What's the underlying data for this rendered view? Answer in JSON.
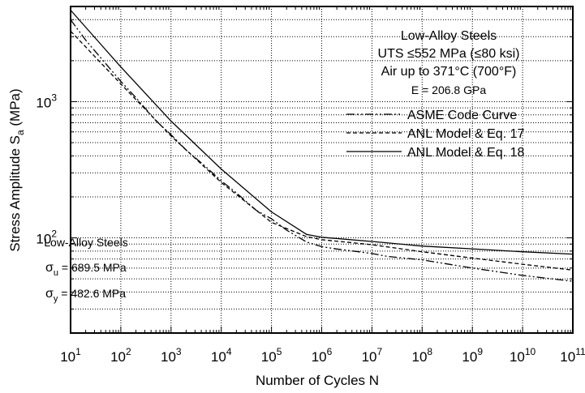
{
  "chart_data": {
    "type": "line",
    "xlabel": "Number of Cycles N",
    "ylabel_main": "Stress Amplitude S",
    "ylabel_sub": "a",
    "ylabel_unit": " (MPa)",
    "x_scale": "log",
    "y_scale": "log",
    "xlim": [
      10,
      100000000000
    ],
    "ylim": [
      20,
      5000
    ],
    "grid": true,
    "x_ticks": [
      {
        "value": 10,
        "base": "10",
        "exp": "1"
      },
      {
        "value": 100,
        "base": "10",
        "exp": "2"
      },
      {
        "value": 1000,
        "base": "10",
        "exp": "3"
      },
      {
        "value": 10000,
        "base": "10",
        "exp": "4"
      },
      {
        "value": 100000,
        "base": "10",
        "exp": "5"
      },
      {
        "value": 1000000,
        "base": "10",
        "exp": "6"
      },
      {
        "value": 10000000,
        "base": "10",
        "exp": "7"
      },
      {
        "value": 100000000,
        "base": "10",
        "exp": "8"
      },
      {
        "value": 1000000000,
        "base": "10",
        "exp": "9"
      },
      {
        "value": 10000000000,
        "base": "10",
        "exp": "10"
      },
      {
        "value": 100000000000,
        "base": "10",
        "exp": "11"
      }
    ],
    "y_ticks": [
      {
        "value": 100,
        "base": "10",
        "exp": "2"
      },
      {
        "value": 1000,
        "base": "10",
        "exp": "3"
      }
    ],
    "title_lines": [
      "Low-Alloy Steels",
      "UTS ≤552 MPa (≤80 ksi)",
      "Air up to 371°C (700°F)"
    ],
    "modulus_text": "E = 206.8 GPa",
    "legend_position": "upper-right",
    "series": [
      {
        "name": "ASME Code Curve",
        "dash": "dashdot",
        "x": [
          10,
          20,
          50,
          100,
          200,
          500,
          1000,
          2000,
          5000,
          10000,
          20000,
          50000,
          100000,
          200000,
          500000,
          1000000,
          2000000,
          10000000,
          20000000,
          100000000,
          1000000000,
          10000000000,
          100000000000
        ],
        "y": [
          4000,
          2830,
          1900,
          1410,
          1070,
          724,
          572,
          441,
          331,
          262,
          214,
          159,
          138,
          114,
          93.1,
          86.2,
          82.8,
          76.8,
          73.1,
          68.9,
          60,
          53,
          48
        ]
      },
      {
        "name": "ANL Model & Eq. 17",
        "dash": "dashed",
        "x": [
          10,
          100,
          1000,
          10000,
          100000,
          500000,
          1000000,
          10000000,
          100000000,
          1000000000,
          10000000000,
          100000000000
        ],
        "y": [
          3300,
          1350,
          560,
          255,
          130,
          102,
          97,
          89,
          79,
          71,
          64,
          58
        ]
      },
      {
        "name": "ANL Model & Eq. 18",
        "dash": "solid",
        "x": [
          10,
          100,
          1000,
          10000,
          100000,
          500000,
          1000000,
          10000000,
          100000000,
          1000000000,
          10000000000,
          100000000000
        ],
        "y": [
          4700,
          1800,
          720,
          320,
          155,
          106,
          101,
          94,
          87,
          83,
          79,
          76
        ]
      }
    ],
    "properties_box": {
      "title": "Low-Alloy Steels",
      "lines": [
        {
          "symbol": "σ",
          "sub": "u",
          "text": " = 689.5 MPa"
        },
        {
          "symbol": "σ",
          "sub": "y",
          "text": " = 482.6 MPa"
        }
      ]
    }
  }
}
